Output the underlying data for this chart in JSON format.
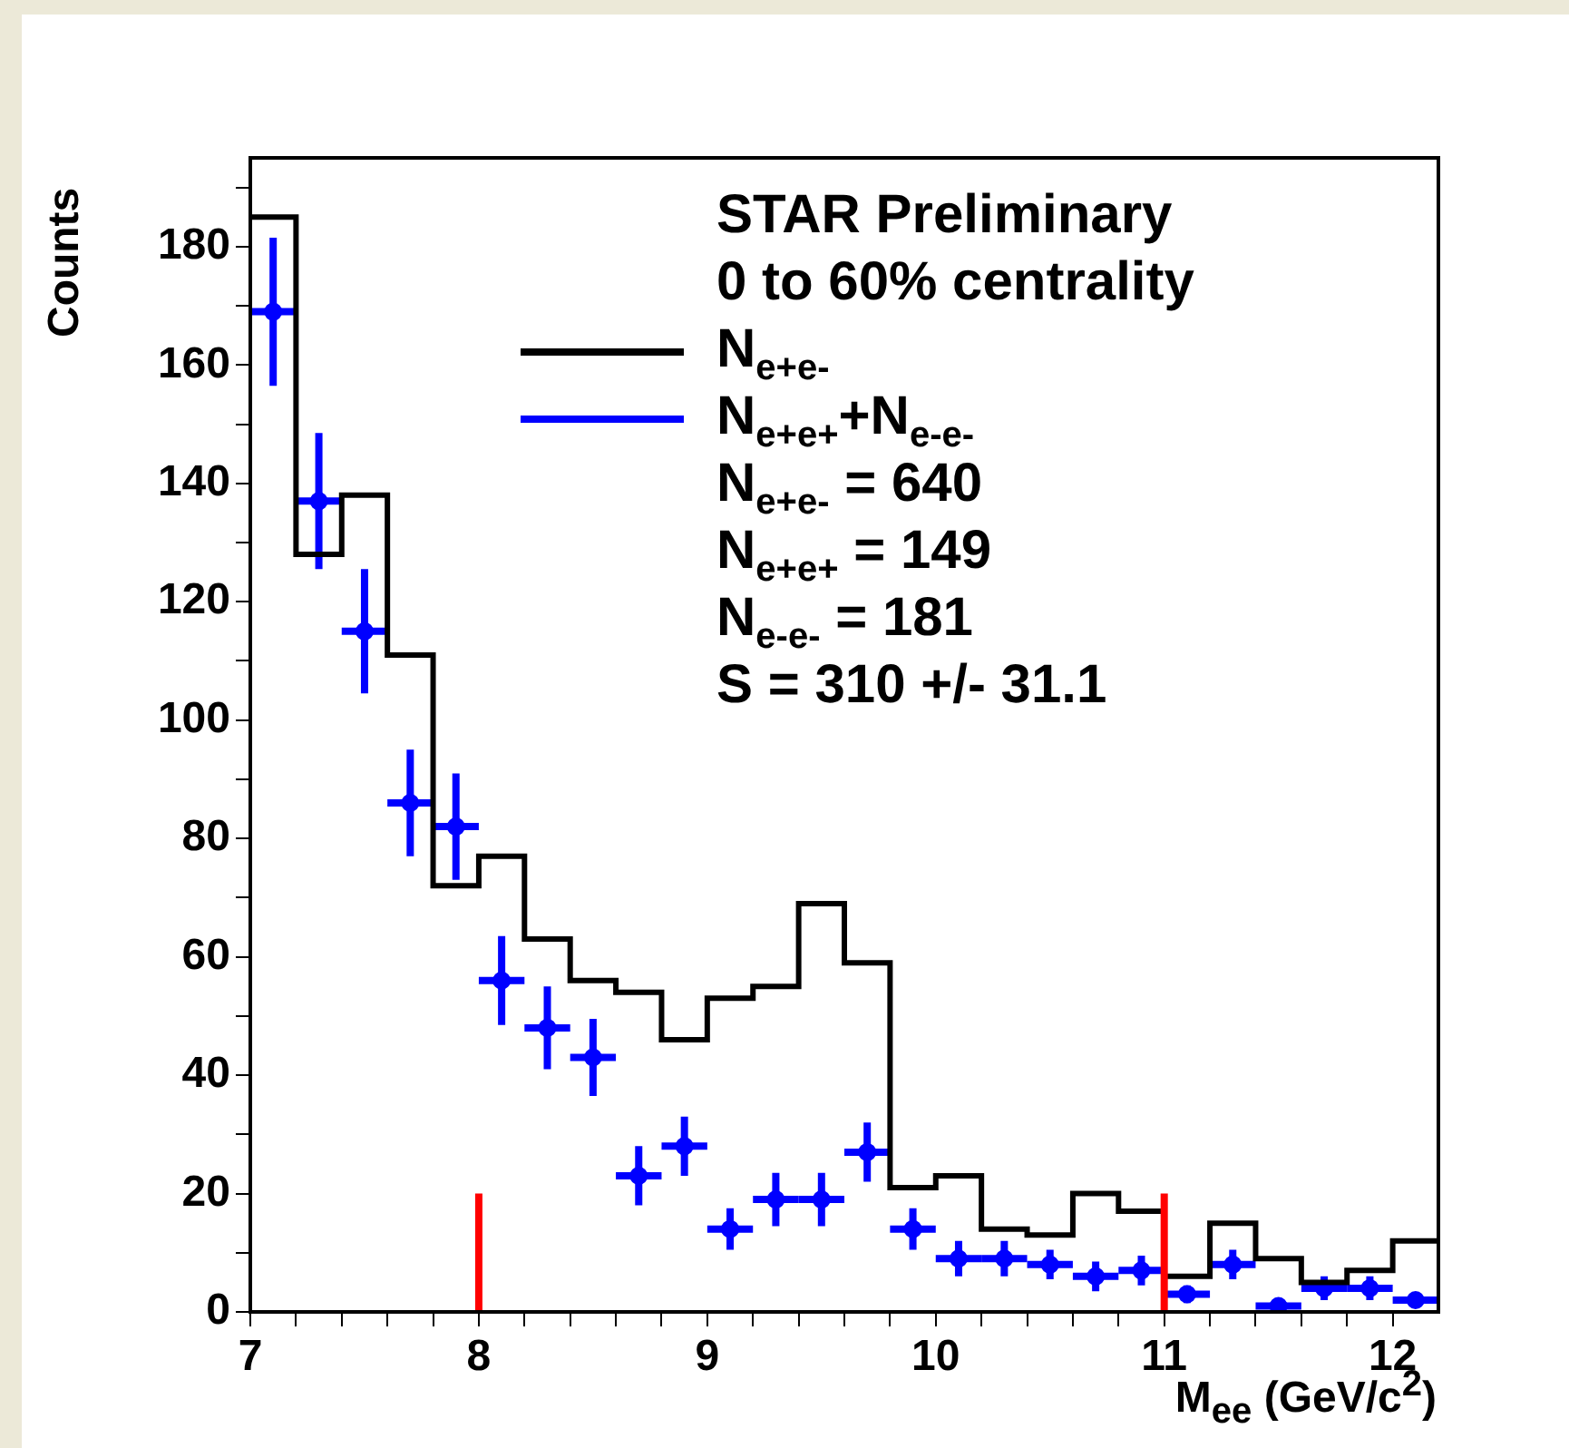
{
  "chart_data": {
    "type": "histogram",
    "xlabel": "M$_{ee}$ (GeV/c$^{2}$)",
    "ylabel": "Counts",
    "bins": [
      7,
      7.2,
      7.4,
      7.6,
      7.8,
      8,
      8.2,
      8.4,
      8.6,
      8.8,
      9,
      9.2,
      9.4,
      9.6,
      9.8,
      10,
      10.2,
      10.4,
      10.6,
      10.8,
      11,
      11.2,
      11.4,
      11.6,
      11.8,
      12,
      12.2
    ],
    "series": [
      {
        "name": "N$_{e+e-}$",
        "color": "#000000",
        "values": [
          185,
          128,
          138,
          111,
          72,
          77,
          63,
          56,
          54,
          46,
          53,
          55,
          69,
          59,
          21,
          23,
          14,
          13,
          20,
          17,
          6,
          15,
          9,
          5,
          7,
          12
        ]
      },
      {
        "name": "N$_{e+e+}$+N$_{e-e-}$",
        "type": "scatter",
        "color": "#0000ff",
        "x": [
          7.1,
          7.3,
          7.5,
          7.7,
          7.9,
          8.1,
          8.3,
          8.5,
          8.7,
          8.9,
          9.1,
          9.3,
          9.5,
          9.7,
          9.9,
          10.1,
          10.3,
          10.5,
          10.7,
          10.9,
          11.1,
          11.3,
          11.5,
          11.7,
          11.9,
          12.1
        ],
        "values": [
          169,
          137,
          115,
          86,
          82,
          56,
          48,
          43,
          23,
          28,
          14,
          19,
          19,
          27,
          14,
          9,
          9,
          8,
          6,
          7,
          3,
          8,
          1,
          4,
          4,
          2
        ],
        "errors": [
          12.5,
          11.5,
          10.5,
          9,
          9,
          7.5,
          7,
          6.5,
          5,
          5,
          3.5,
          4.5,
          4.5,
          5,
          3.5,
          3,
          3,
          2.5,
          2.5,
          2.5,
          1.5,
          2.5,
          null,
          2,
          2,
          null
        ],
        "marker": "circle",
        "xerrors": [
          0.1,
          0.1,
          0.1,
          0.1,
          0.1,
          0.1,
          0.1,
          0.1,
          0.1,
          0.1,
          0.1,
          0.1,
          0.1,
          0.1,
          0.1,
          0.1,
          0.1,
          0.1,
          0.1,
          0.1,
          0.1,
          0.1,
          0.1,
          0.1,
          0.1,
          0.1
        ]
      },
      {
        "type": "line",
        "color": "#ff0000",
        "x": [
          8,
          8
        ],
        "values": [
          0,
          20
        ]
      },
      {
        "type": "line",
        "color": "#ff0000",
        "x": [
          11,
          11
        ],
        "values": [
          0,
          20
        ]
      }
    ],
    "annotations": [
      "STAR Preliminary",
      "0 to 60% centrality",
      "N$_{e+e-}$ = 640",
      "N$_{e+e+}$ = 149",
      "N$_{e-e-}$ = 181",
      "S = 310 +/- 31.1"
    ],
    "xlim": [
      7,
      12.2
    ],
    "xticks": [
      7,
      {
        "value": 7.2,
        "label": null
      },
      {
        "value": 7.4,
        "label": null
      },
      {
        "value": 7.6,
        "label": null
      },
      {
        "value": 7.8,
        "label": null
      },
      8,
      {
        "value": 8.2,
        "label": null
      },
      {
        "value": 8.4,
        "label": null
      },
      {
        "value": 8.6,
        "label": null
      },
      {
        "value": 8.8,
        "label": null
      },
      9,
      {
        "value": 9.2,
        "label": null
      },
      {
        "value": 9.4,
        "label": null
      },
      {
        "value": 9.6,
        "label": null
      },
      {
        "value": 9.8,
        "label": null
      },
      10,
      {
        "value": 10.2,
        "label": null
      },
      {
        "value": 10.4,
        "label": null
      },
      {
        "value": 10.6,
        "label": null
      },
      {
        "value": 10.8,
        "label": null
      },
      11,
      {
        "value": 11.2,
        "label": null
      },
      {
        "value": 11.4,
        "label": null
      },
      {
        "value": 11.6,
        "label": null
      },
      {
        "value": 11.8,
        "label": null
      },
      12
    ],
    "ylim": [
      0,
      195
    ],
    "yticks": [
      0,
      {
        "value": 10,
        "label": null
      },
      20,
      {
        "value": 30,
        "label": null
      },
      40,
      {
        "value": 50,
        "label": null
      },
      60,
      {
        "value": 70,
        "label": null
      },
      80,
      {
        "value": 90,
        "label": null
      },
      100,
      {
        "value": 110,
        "label": null
      },
      120,
      {
        "value": 130,
        "label": null
      },
      140,
      {
        "value": 150,
        "label": null
      },
      160,
      {
        "value": 170,
        "label": null
      },
      180,
      {
        "value": 190,
        "label": null
      }
    ],
    "grid": false,
    "legend": "top",
    "line_style": "solid"
  }
}
